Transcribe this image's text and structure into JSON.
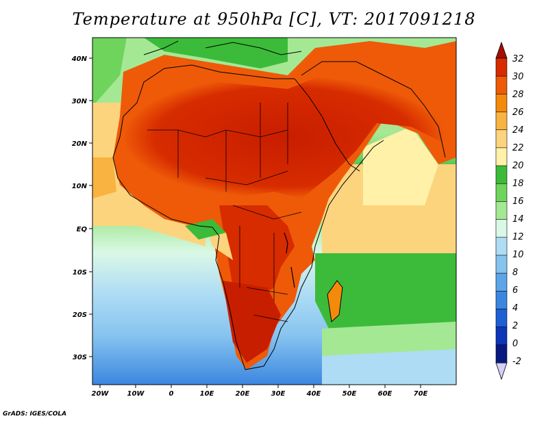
{
  "title": "Temperature at 950hPa [C], VT: 2017091218",
  "credit": "GrADS: IGES/COLA",
  "axes": {
    "lon_ticks": [
      "20W",
      "10W",
      "0",
      "10E",
      "20E",
      "30E",
      "40E",
      "50E",
      "60E",
      "70E"
    ],
    "lat_ticks": [
      "40N",
      "30N",
      "20N",
      "10N",
      "EQ",
      "10S",
      "20S",
      "30S"
    ]
  },
  "colorbar": {
    "levels": [
      "32",
      "30",
      "28",
      "26",
      "24",
      "22",
      "20",
      "18",
      "16",
      "14",
      "12",
      "10",
      "8",
      "6",
      "4",
      "2",
      "0",
      "-2"
    ],
    "colors": [
      "#a50f00",
      "#d72b00",
      "#ee5a08",
      "#f48a0c",
      "#f9b340",
      "#fcd47e",
      "#fff1a8",
      "#3cbb3a",
      "#6ed45c",
      "#a4e894",
      "#daf8e6",
      "#aedcf5",
      "#86c3ef",
      "#5ea4e8",
      "#3c86e0",
      "#1e5fd4",
      "#0d36b8",
      "#081a80",
      "#d6d0f4"
    ]
  },
  "colors": {
    "ocean_cold": "#3c86e0",
    "ocean_mid": "#86c3ef",
    "ocean_cool": "#daf8e6",
    "warm_band": "#3cbb3a",
    "land_hot": "#d72b00",
    "land_hottest": "#a50f00"
  }
}
